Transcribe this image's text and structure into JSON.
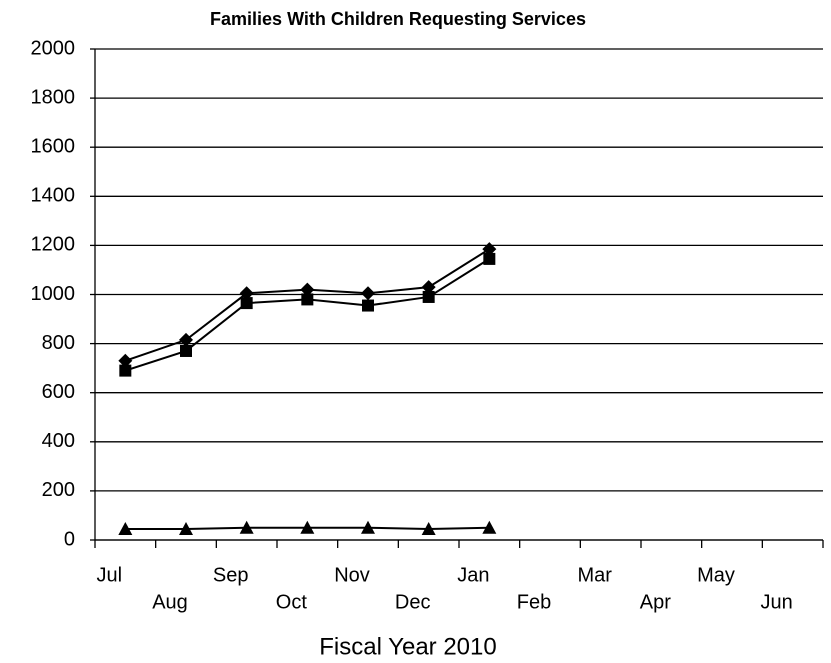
{
  "chart_data": {
    "type": "line",
    "title": "Families With Children Requesting Services",
    "x_label": "Fiscal Year 2010",
    "categories": [
      "Jul",
      "Aug",
      "Sep",
      "Oct",
      "Nov",
      "Dec",
      "Jan",
      "Feb",
      "Mar",
      "Apr",
      "May",
      "Jun"
    ],
    "series": [
      {
        "color": "#000000",
        "marker": "diamond",
        "values": [
          730,
          815,
          1005,
          1020,
          1005,
          1030,
          1185,
          null,
          null,
          null,
          null,
          null
        ]
      },
      {
        "color": "#000000",
        "marker": "square",
        "values": [
          690,
          770,
          965,
          980,
          955,
          990,
          1145,
          null,
          null,
          null,
          null,
          null
        ]
      },
      {
        "color": "#000000",
        "marker": "triangle",
        "values": [
          45,
          45,
          50,
          50,
          50,
          45,
          50,
          null,
          null,
          null,
          null,
          null
        ]
      }
    ],
    "ylim": [
      0,
      2000
    ],
    "yticks": [
      0,
      200,
      400,
      600,
      800,
      1000,
      1200,
      1400,
      1600,
      1800,
      2000
    ],
    "grid": true
  }
}
